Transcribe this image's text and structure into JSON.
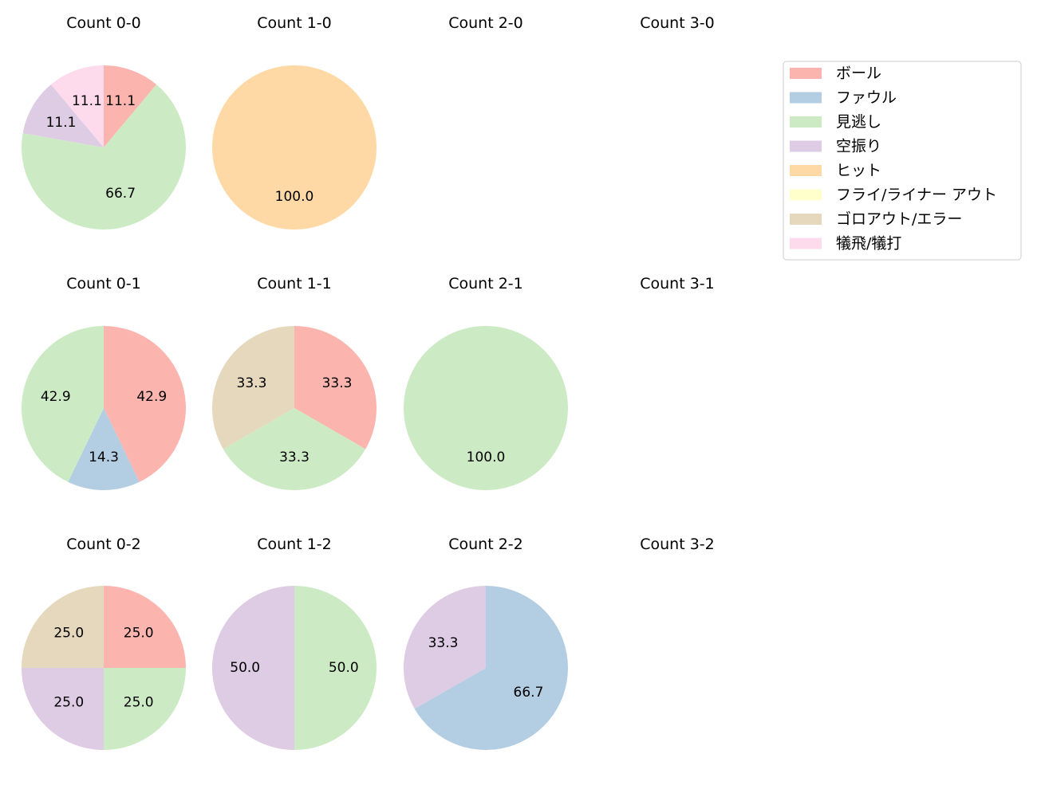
{
  "chart_data": {
    "type": "pie",
    "categories": [
      "ボール",
      "ファウル",
      "見逃し",
      "空振り",
      "ヒット",
      "フライ/ライナー アウト",
      "ゴロアウト/エラー",
      "犠飛/犠打"
    ],
    "colors": [
      "#fbb4ae",
      "#b3cde3",
      "#ccebc5",
      "#decbe4",
      "#fed9a6",
      "#ffffcc",
      "#e5d8bd",
      "#fddaec"
    ],
    "start_angle": 90,
    "direction": "clockwise",
    "legend_position": "top-right",
    "charts": [
      {
        "title": "Count 0-0",
        "values": [
          11.1,
          0,
          66.7,
          11.1,
          0,
          0,
          0,
          11.1
        ]
      },
      {
        "title": "Count 1-0",
        "values": [
          0,
          0,
          0,
          0,
          100.0,
          0,
          0,
          0
        ]
      },
      {
        "title": "Count 2-0",
        "values": []
      },
      {
        "title": "Count 3-0",
        "values": []
      },
      {
        "title": "Count 0-1",
        "values": [
          42.9,
          14.3,
          42.9,
          0,
          0,
          0,
          0,
          0
        ]
      },
      {
        "title": "Count 1-1",
        "values": [
          33.3,
          0,
          33.3,
          0,
          0,
          0,
          33.3,
          0
        ]
      },
      {
        "title": "Count 2-1",
        "values": [
          0,
          0,
          100.0,
          0,
          0,
          0,
          0,
          0
        ]
      },
      {
        "title": "Count 3-1",
        "values": []
      },
      {
        "title": "Count 0-2",
        "values": [
          25.0,
          0,
          25.0,
          25.0,
          0,
          0,
          25.0,
          0
        ]
      },
      {
        "title": "Count 1-2",
        "values": [
          0,
          0,
          50.0,
          50.0,
          0,
          0,
          0,
          0
        ]
      },
      {
        "title": "Count 2-2",
        "values": [
          0,
          66.7,
          0,
          33.3,
          0,
          0,
          0,
          0
        ]
      },
      {
        "title": "Count 3-2",
        "values": []
      }
    ]
  }
}
